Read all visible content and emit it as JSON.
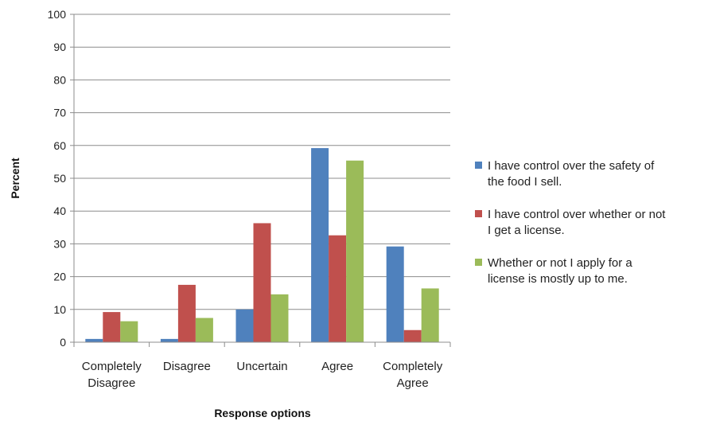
{
  "chart_data": {
    "type": "bar",
    "categories": [
      [
        "Completely",
        "Disagree"
      ],
      [
        "Disagree"
      ],
      [
        "Uncertain"
      ],
      [
        "Agree"
      ],
      [
        "Completely",
        "Agree"
      ]
    ],
    "series": [
      {
        "name": [
          "I have control over the safety of",
          "the food I sell."
        ],
        "color": "#4F81BD",
        "values": [
          1,
          1,
          10,
          59.2,
          29.2
        ]
      },
      {
        "name": [
          "I have control over whether or not",
          "I get a license."
        ],
        "color": "#C0504D",
        "values": [
          9.2,
          17.5,
          36.3,
          32.6,
          3.7
        ]
      },
      {
        "name": [
          "Whether or not I apply for a",
          "license is mostly up to me."
        ],
        "color": "#9BBB59",
        "values": [
          6.4,
          7.4,
          14.6,
          55.4,
          16.4
        ]
      }
    ],
    "xlabel": "Response options",
    "ylabel": "Percent",
    "ylim": [
      0,
      100
    ],
    "yticks": [
      0,
      10,
      20,
      30,
      40,
      50,
      60,
      70,
      80,
      90,
      100
    ],
    "grid": true,
    "legend": "right"
  }
}
